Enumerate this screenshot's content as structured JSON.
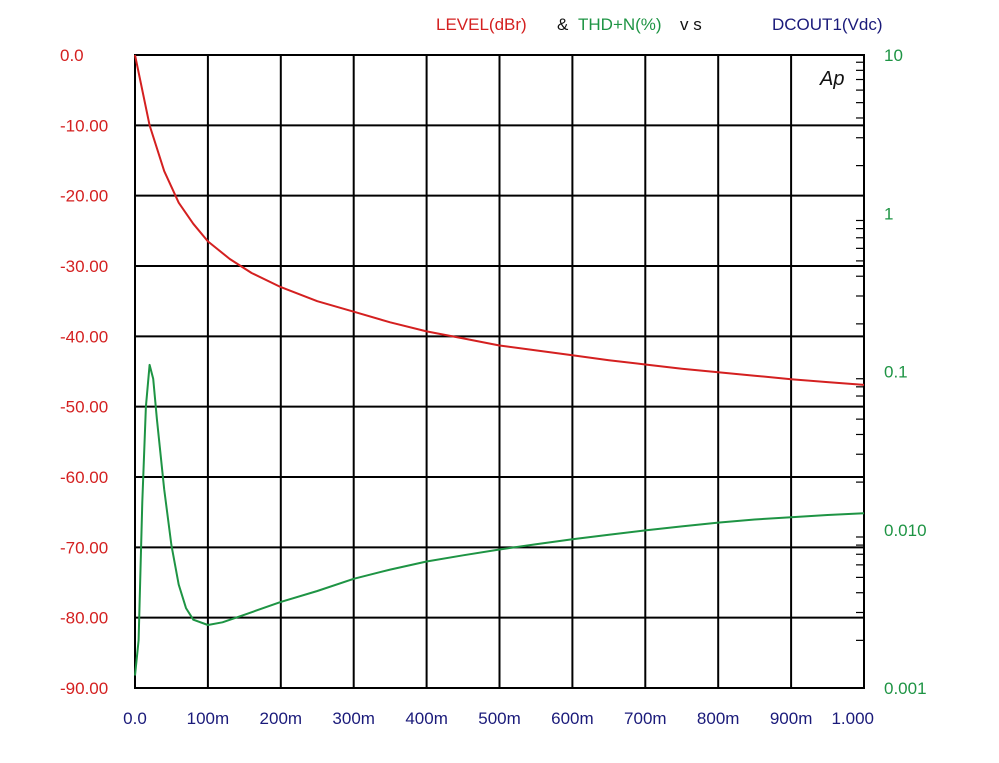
{
  "chart_data": {
    "type": "line",
    "title_parts": {
      "level": "LEVEL(dBr)",
      "amp": "&",
      "thd": "THD+N(%)",
      "vs": "v s",
      "dcout": "DCOUT1(Vdc)"
    },
    "logo": "Ap",
    "x_ticks": [
      "0.0",
      "100m",
      "200m",
      "300m",
      "400m",
      "500m",
      "600m",
      "700m",
      "800m",
      "900m",
      "1.000"
    ],
    "xlim": [
      0,
      1
    ],
    "y_left": {
      "ticks": [
        "0.0",
        "-10.00",
        "-20.00",
        "-30.00",
        "-40.00",
        "-50.00",
        "-60.00",
        "-70.00",
        "-80.00",
        "-90.00"
      ],
      "lim": [
        -90,
        0
      ]
    },
    "y_right": {
      "ticks": [
        "10",
        "1",
        "0.1",
        "0.010",
        "0.001"
      ],
      "lim": [
        0.001,
        10
      ],
      "scale": "log"
    },
    "grid": true,
    "colors": {
      "level": "#d42020",
      "thd": "#1e9444",
      "dcout": "#1a1a7a",
      "text_dark": "#111111",
      "axis": "#000000"
    },
    "series": [
      {
        "name": "LEVEL(dBr)",
        "axis": "left",
        "x": [
          0.0,
          0.02,
          0.04,
          0.06,
          0.08,
          0.1,
          0.13,
          0.16,
          0.2,
          0.25,
          0.3,
          0.35,
          0.4,
          0.45,
          0.5,
          0.55,
          0.6,
          0.65,
          0.7,
          0.75,
          0.8,
          0.85,
          0.9,
          0.95,
          1.0
        ],
        "values": [
          0.0,
          -10.0,
          -16.5,
          -21.0,
          -24.0,
          -26.5,
          -29.0,
          -31.0,
          -33.0,
          -35.0,
          -36.5,
          -38.0,
          -39.3,
          -40.3,
          -41.3,
          -42.0,
          -42.7,
          -43.4,
          -44.0,
          -44.6,
          -45.1,
          -45.6,
          -46.1,
          -46.5,
          -46.9
        ]
      },
      {
        "name": "THD+N(%)",
        "axis": "right",
        "x": [
          0.0,
          0.005,
          0.01,
          0.015,
          0.02,
          0.025,
          0.03,
          0.04,
          0.05,
          0.06,
          0.07,
          0.08,
          0.1,
          0.12,
          0.15,
          0.2,
          0.25,
          0.3,
          0.35,
          0.4,
          0.45,
          0.5,
          0.55,
          0.6,
          0.65,
          0.7,
          0.75,
          0.8,
          0.85,
          0.9,
          0.95,
          1.0
        ],
        "values": [
          0.0012,
          0.002,
          0.015,
          0.06,
          0.11,
          0.09,
          0.05,
          0.018,
          0.008,
          0.0045,
          0.0032,
          0.0027,
          0.0025,
          0.0026,
          0.0029,
          0.0035,
          0.0041,
          0.0049,
          0.0056,
          0.0063,
          0.0069,
          0.0075,
          0.0081,
          0.0087,
          0.0093,
          0.0099,
          0.0105,
          0.0111,
          0.0116,
          0.012,
          0.0124,
          0.0127
        ]
      }
    ]
  }
}
